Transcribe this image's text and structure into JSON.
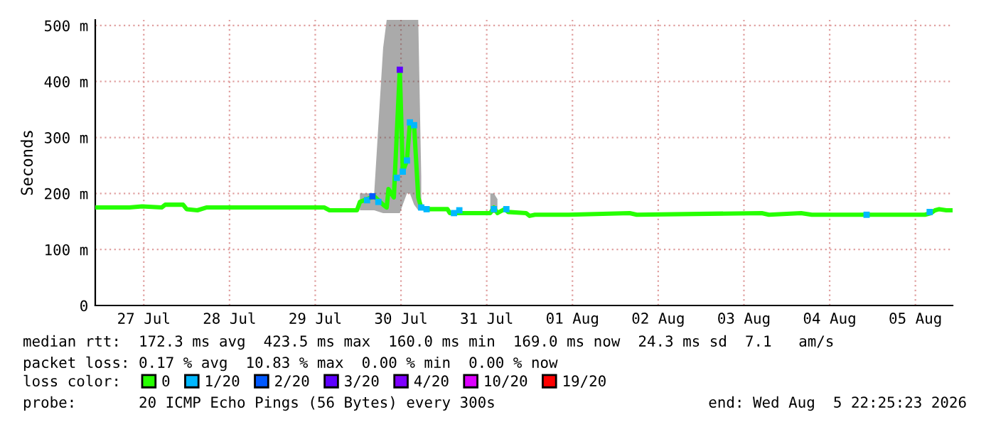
{
  "chart_data": {
    "type": "line",
    "ylabel": "Seconds",
    "xlim": [
      "2026-07-26T22:25",
      "2026-08-05T22:25"
    ],
    "xticks": [
      {
        "value": "2026-07-27T12:00",
        "label": "27 Jul"
      },
      {
        "value": "2026-07-28T12:00",
        "label": "28 Jul"
      },
      {
        "value": "2026-07-29T12:00",
        "label": "29 Jul"
      },
      {
        "value": "2026-07-30T12:00",
        "label": "30 Jul"
      },
      {
        "value": "2026-07-31T12:00",
        "label": "31 Jul"
      },
      {
        "value": "2026-08-01T12:00",
        "label": "01 Aug"
      },
      {
        "value": "2026-08-02T12:00",
        "label": "02 Aug"
      },
      {
        "value": "2026-08-03T12:00",
        "label": "03 Aug"
      },
      {
        "value": "2026-08-04T12:00",
        "label": "04 Aug"
      },
      {
        "value": "2026-08-05T12:00",
        "label": "05 Aug"
      }
    ],
    "ylim": [
      0,
      510
    ],
    "yticks": [
      0,
      {
        "value": 100,
        "label": "100 m"
      },
      {
        "value": 200,
        "label": "200 m"
      },
      {
        "value": 300,
        "label": "300 m"
      },
      {
        "value": 400,
        "label": "400 m"
      },
      {
        "value": 500,
        "label": "500 m"
      }
    ],
    "grid": true,
    "legend": "bottom",
    "legend_title": "loss color:",
    "series": [
      {
        "name": "0",
        "color": "#26ff00",
        "x": [
          "2026-07-26T22:25",
          "2026-07-27T08:00",
          "2026-07-27T11:30",
          "2026-07-27T17:00",
          "2026-07-27T18:00",
          "2026-07-27T23:00",
          "2026-07-28T00:00",
          "2026-07-28T03:00",
          "2026-07-28T05:30",
          "2026-07-29T14:30",
          "2026-07-29T16:00",
          "2026-07-29T23:40",
          "2026-07-30T00:30",
          "2026-07-30T04:30",
          "2026-07-30T07:00",
          "2026-07-30T08:00",
          "2026-07-30T08:30",
          "2026-07-30T10:00",
          "2026-07-30T11:40",
          "2026-07-30T12:30",
          "2026-07-30T13:40",
          "2026-07-30T14:30",
          "2026-07-30T15:40",
          "2026-07-30T16:50",
          "2026-07-30T17:40",
          "2026-07-30T19:10",
          "2026-07-31T01:00",
          "2026-07-31T01:40",
          "2026-07-31T13:00",
          "2026-07-31T14:00",
          "2026-07-31T15:00",
          "2026-07-31T17:00",
          "2026-07-31T18:00",
          "2026-07-31T23:00",
          "2026-08-01T00:00",
          "2026-08-01T01:30",
          "2026-08-01T11:00",
          "2026-08-02T04:00",
          "2026-08-02T06:00",
          "2026-08-03T17:00",
          "2026-08-03T19:00",
          "2026-08-04T04:00",
          "2026-08-04T07:00",
          "2026-08-05T14:40",
          "2026-08-05T16:20",
          "2026-08-05T17:30",
          "2026-08-05T18:40",
          "2026-08-05T20:40",
          "2026-08-05T22:00"
        ],
        "values": [
          175,
          175,
          177,
          175,
          180,
          180,
          172,
          170,
          175,
          175,
          170,
          170,
          185,
          195,
          180,
          175,
          208,
          193,
          421,
          239,
          259,
          327,
          322,
          193,
          175,
          172,
          172,
          165,
          165,
          175,
          165,
          172,
          167,
          165,
          160,
          162,
          162,
          165,
          162,
          165,
          162,
          165,
          162,
          162,
          165,
          170,
          172,
          170,
          170
        ],
        "lower": [
          null,
          null,
          null,
          null,
          null,
          null,
          null,
          null,
          null,
          null,
          null,
          null,
          170,
          170,
          165,
          165,
          165,
          165,
          165,
          180,
          200,
          200,
          180,
          170,
          170,
          null,
          null,
          null,
          165,
          165,
          165,
          null,
          null,
          null,
          null,
          null,
          null,
          null,
          null,
          null,
          null,
          null,
          null,
          null,
          null,
          null,
          null,
          null,
          null
        ],
        "upper": [
          null,
          null,
          null,
          null,
          null,
          null,
          null,
          null,
          null,
          null,
          null,
          null,
          200,
          200,
          460,
          510,
          510,
          510,
          510,
          510,
          510,
          510,
          510,
          510,
          230,
          null,
          null,
          null,
          200,
          200,
          190,
          null,
          null,
          null,
          null,
          null,
          null,
          null,
          null,
          null,
          null,
          null,
          null,
          null,
          null,
          null,
          null,
          null,
          null
        ]
      },
      {
        "name": "1/20",
        "color": "#00b8ff",
        "type": "scatter",
        "marker": "square",
        "x": [
          "2026-07-30T02:30",
          "2026-07-30T05:40",
          "2026-07-30T10:50",
          "2026-07-30T12:30",
          "2026-07-30T13:40",
          "2026-07-30T14:30",
          "2026-07-30T15:40",
          "2026-07-30T17:40",
          "2026-07-30T19:10",
          "2026-07-31T02:50",
          "2026-07-31T04:20",
          "2026-07-31T14:00",
          "2026-07-31T17:30",
          "2026-08-04T22:20",
          "2026-08-05T16:00"
        ],
        "values": [
          188,
          185,
          228,
          239,
          259,
          327,
          322,
          175,
          172,
          165,
          170,
          172,
          172,
          162,
          167
        ]
      },
      {
        "name": "2/20",
        "color": "#0059ff",
        "type": "scatter",
        "marker": "square",
        "x": [
          "2026-07-30T04:00"
        ],
        "values": [
          195
        ]
      },
      {
        "name": "3/20",
        "color": "#5e00ff",
        "type": "scatter",
        "marker": "square",
        "x": [
          "2026-07-30T11:40"
        ],
        "values": [
          421
        ]
      },
      {
        "name": "4/20",
        "color": "#7e00ff",
        "type": "scatter"
      },
      {
        "name": "10/20",
        "color": "#dd00ff",
        "type": "scatter"
      },
      {
        "name": "19/20",
        "color": "#ff0000",
        "type": "scatter"
      }
    ],
    "annotations": [
      "median rtt:  172.3 ms avg  423.5 ms max  160.0 ms min  169.0 ms now  24.3 ms sd  7.1   am/s",
      "packet loss: 0.17 % avg  10.83 % max  0.00 % min  0.00 % now",
      "probe:       20 ICMP Echo Pings (56 Bytes) every 300s",
      "end: Wed Aug  5 22:25:23 2026"
    ]
  }
}
